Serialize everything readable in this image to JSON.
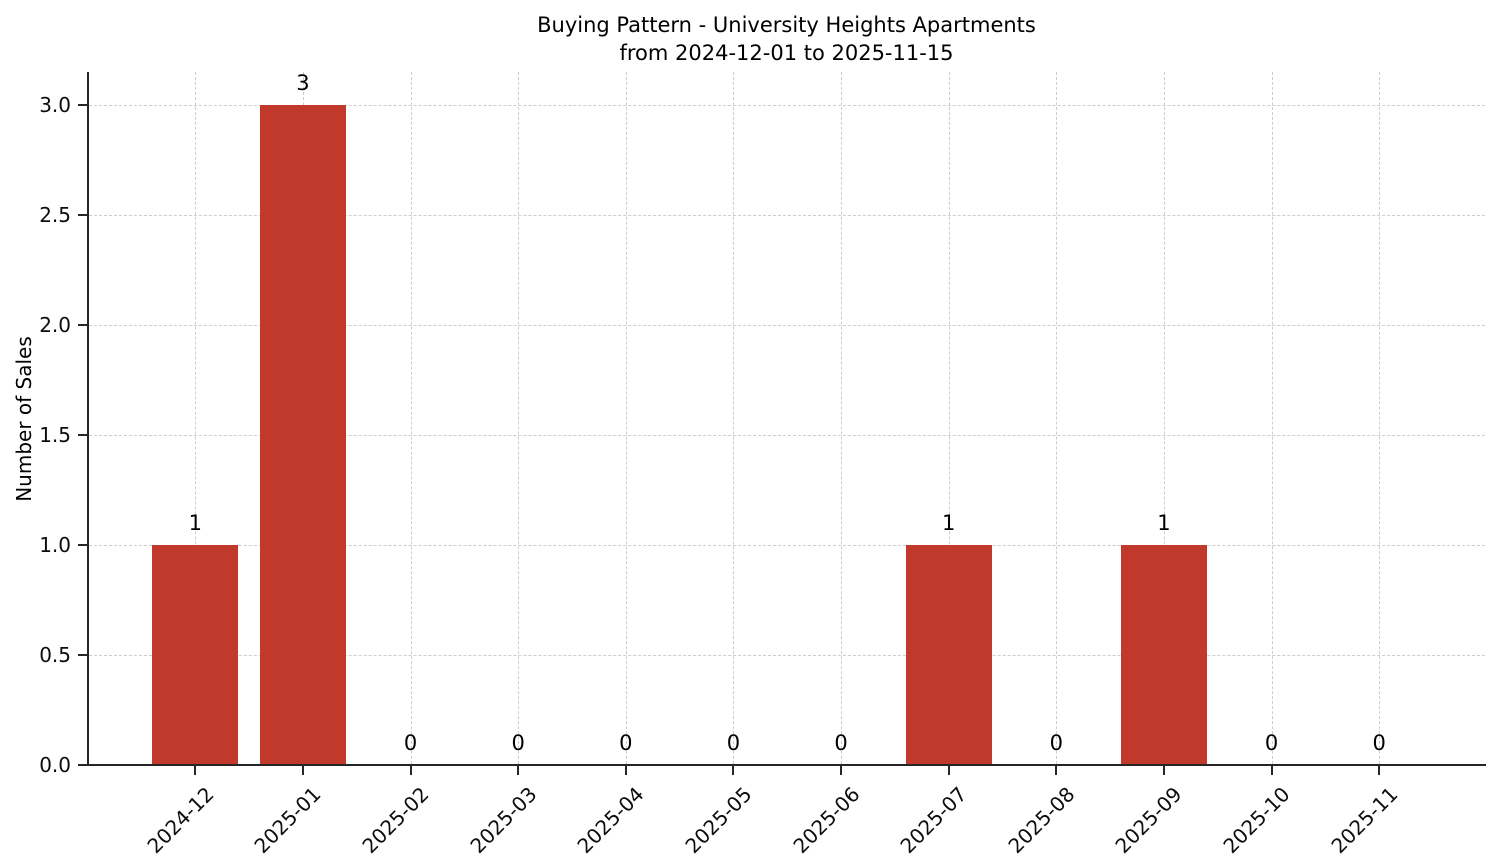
{
  "chart_data": {
    "type": "bar",
    "title": "Buying Pattern - University Heights Apartments",
    "subtitle": "from 2024-12-01 to 2025-11-15",
    "categories": [
      "2024-12",
      "2025-01",
      "2025-02",
      "2025-03",
      "2025-04",
      "2025-05",
      "2025-06",
      "2025-07",
      "2025-08",
      "2025-09",
      "2025-10",
      "2025-11"
    ],
    "values": [
      1,
      3,
      0,
      0,
      0,
      0,
      0,
      1,
      0,
      1,
      0,
      0
    ],
    "bar_value_labels": [
      "1",
      "3",
      "0",
      "0",
      "0",
      "0",
      "0",
      "1",
      "0",
      "1",
      "0",
      "0"
    ],
    "xlabel": "",
    "ylabel": "Number of Sales",
    "y_tick_labels": [
      "0.0",
      "0.5",
      "1.0",
      "1.5",
      "2.0",
      "2.5",
      "3.0"
    ],
    "y_tick_values": [
      0,
      0.5,
      1,
      1.5,
      2,
      2.5,
      3
    ],
    "ylim": [
      0,
      3.15
    ],
    "grid": "dashed-both-axes",
    "legend_position": "none",
    "colors": {
      "bar": "#c0392b",
      "grid": "#cdcdcd",
      "axis": "#262626",
      "text": "#000000",
      "background": "#ffffff"
    }
  }
}
